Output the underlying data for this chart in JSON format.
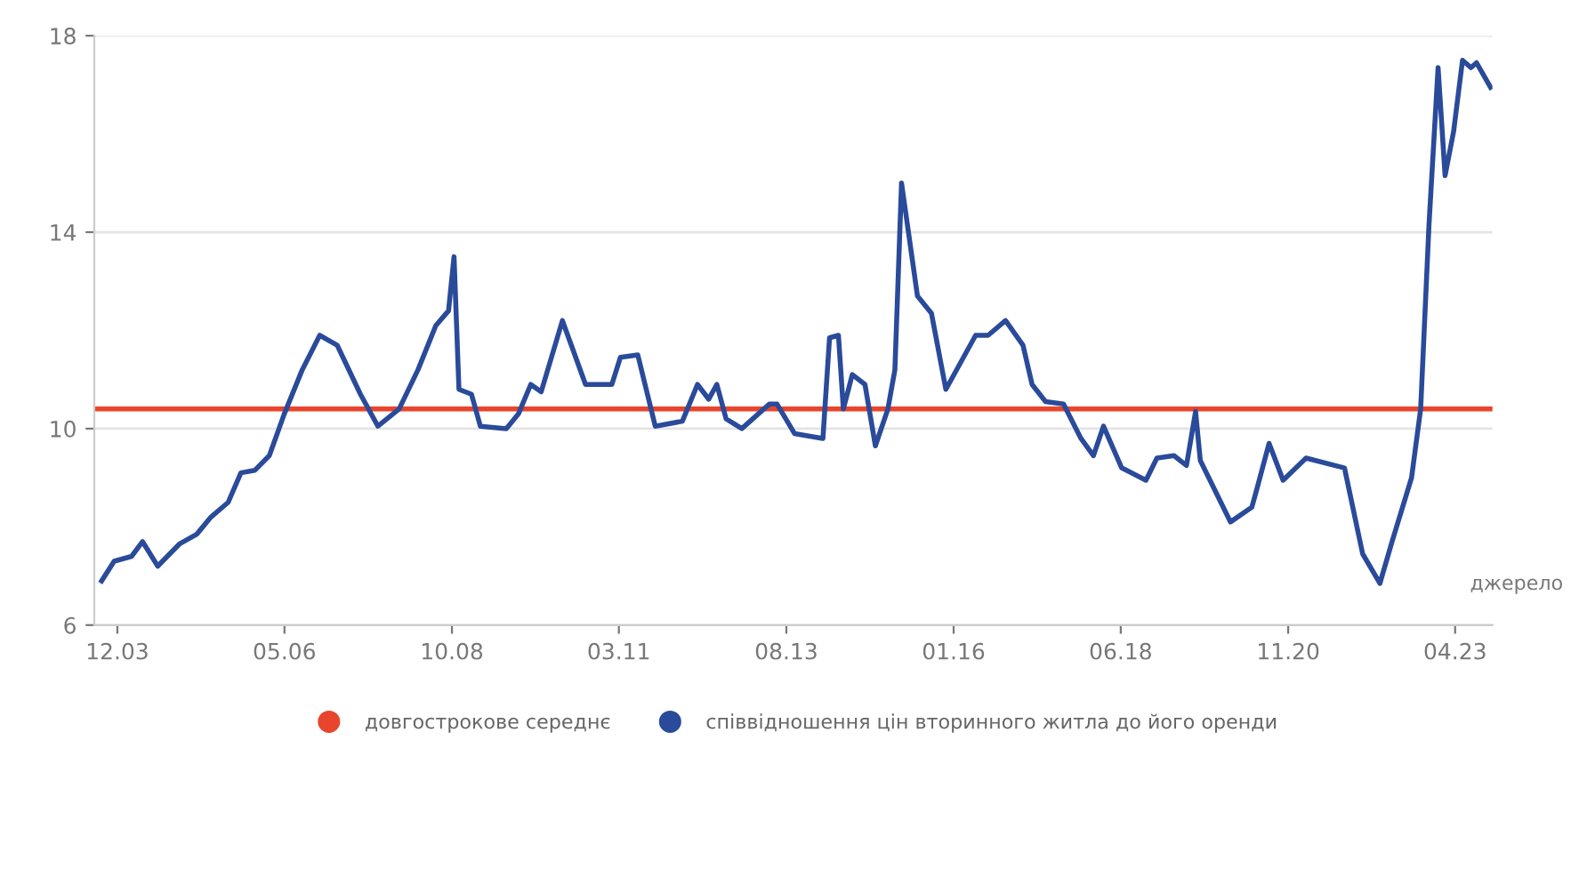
{
  "chart_data": {
    "type": "line",
    "annotations": [
      "джерело"
    ],
    "series": [
      {
        "name": "довгострокове середнє",
        "color": "#e8452c",
        "x": [
          "2003-08-14",
          "2023-10-05"
        ],
        "values": [
          10.4,
          10.4
        ]
      },
      {
        "name": "співвідношення цін вторинного житла до його оренди",
        "color": "#2a4a9a",
        "x": [
          "2003-09-09",
          "2003-11-14",
          "2004-02-14",
          "2004-04-12",
          "2004-07-01",
          "2004-10-23",
          "2005-01-23",
          "2005-04-08",
          "2005-07-08",
          "2005-09-13",
          "2005-11-25",
          "2006-02-10",
          "2006-04-30",
          "2006-08-03",
          "2006-11-03",
          "2007-02-03",
          "2007-06-06",
          "2007-09-06",
          "2007-12-27",
          "2008-04-05",
          "2008-07-08",
          "2008-09-13",
          "2008-10-12",
          "2008-11-07",
          "2009-01-12",
          "2009-02-28",
          "2009-07-15",
          "2009-09-17",
          "2009-11-21",
          "2010-01-15",
          "2010-05-07",
          "2010-09-06",
          "2011-01-23",
          "2011-03-09",
          "2011-06-09",
          "2011-09-09",
          "2012-01-30",
          "2012-04-19",
          "2012-06-17",
          "2012-07-30",
          "2012-09-17",
          "2012-12-09",
          "2013-05-03",
          "2013-06-13",
          "2013-09-13",
          "2014-02-10",
          "2014-03-17",
          "2014-05-03",
          "2014-05-29",
          "2014-07-15",
          "2014-09-20",
          "2014-11-14",
          "2015-01-19",
          "2015-02-25",
          "2015-04-01",
          "2015-06-24",
          "2015-09-06",
          "2015-11-21",
          "2016-04-26",
          "2016-07-01",
          "2016-10-01",
          "2017-01-01",
          "2017-02-18",
          "2017-04-30",
          "2017-08-03",
          "2017-11-03",
          "2018-01-08",
          "2018-03-02",
          "2018-06-06",
          "2018-10-12",
          "2018-12-09",
          "2019-03-09",
          "2019-05-14",
          "2019-07-01",
          "2019-07-26",
          "2020-01-01",
          "2020-04-23",
          "2020-05-18",
          "2020-07-23",
          "2020-10-05",
          "2021-02-03",
          "2021-08-25",
          "2021-11-29",
          "2022-02-28",
          "2022-05-03",
          "2022-08-14",
          "2022-10-01",
          "2022-11-14",
          "2023-01-01",
          "2023-02-07",
          "2023-03-24",
          "2023-05-10",
          "2023-06-24",
          "2023-07-23",
          "2023-10-05"
        ],
        "values": [
          6.9,
          7.3,
          7.4,
          7.7,
          7.2,
          7.65,
          7.85,
          8.2,
          8.5,
          9.1,
          9.15,
          9.45,
          10.3,
          11.2,
          11.9,
          11.7,
          10.7,
          10.05,
          10.4,
          11.2,
          12.1,
          12.4,
          13.5,
          10.8,
          10.7,
          10.05,
          10.0,
          10.3,
          10.9,
          10.75,
          12.2,
          10.9,
          10.9,
          11.45,
          11.5,
          10.05,
          10.15,
          10.9,
          10.6,
          10.9,
          10.2,
          10.0,
          10.5,
          10.5,
          9.9,
          9.8,
          11.85,
          11.9,
          10.4,
          11.1,
          10.9,
          9.65,
          10.4,
          11.2,
          15.0,
          12.7,
          12.35,
          10.8,
          11.9,
          11.9,
          12.2,
          11.7,
          10.9,
          10.55,
          10.5,
          9.8,
          9.45,
          10.05,
          9.2,
          8.95,
          9.4,
          9.45,
          9.25,
          10.35,
          9.35,
          8.1,
          8.4,
          8.75,
          9.7,
          8.95,
          9.4,
          9.2,
          7.45,
          6.85,
          7.7,
          9.0,
          10.4,
          14.15,
          17.35,
          15.15,
          16.05,
          17.5,
          17.35,
          17.45,
          16.95
        ]
      }
    ],
    "xlim": [
      "2003-08-01",
      "2023-10-15"
    ],
    "xticks": [
      {
        "value": "2003-12",
        "label": "12.03"
      },
      {
        "value": "2006-05",
        "label": "05.06"
      },
      {
        "value": "2008-10",
        "label": "10.08"
      },
      {
        "value": "2011-03",
        "label": "03.11"
      },
      {
        "value": "2013-08",
        "label": "08.13"
      },
      {
        "value": "2016-01",
        "label": "01.16"
      },
      {
        "value": "2018-06",
        "label": "06.18"
      },
      {
        "value": "2020-11",
        "label": "11.20"
      },
      {
        "value": "2023-04",
        "label": "04.23"
      }
    ],
    "ylim": [
      6,
      18
    ],
    "yticks": [
      6,
      10,
      14,
      18
    ],
    "grid": "y",
    "legend": "bottom",
    "marker": "none",
    "line_style": "solid"
  }
}
